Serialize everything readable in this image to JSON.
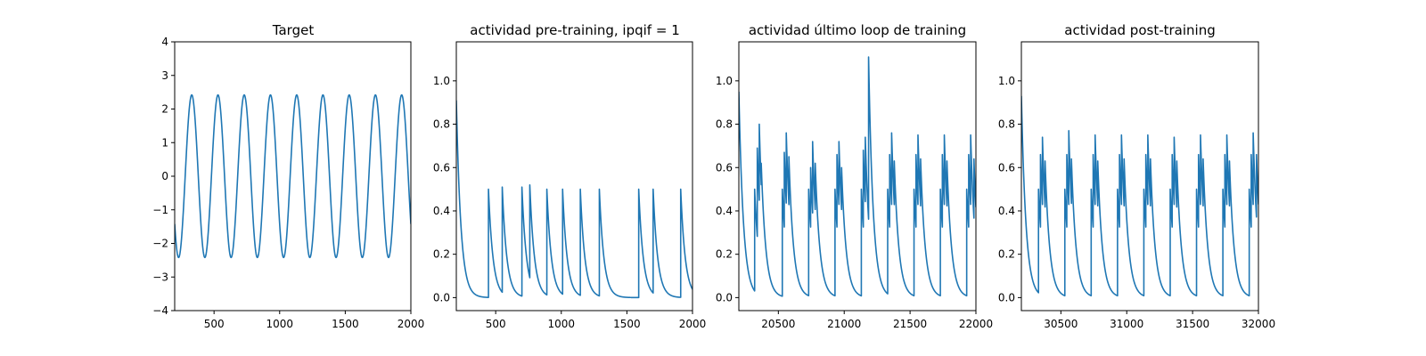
{
  "chart_data": [
    {
      "type": "line",
      "title": "Target",
      "xlim": [
        200,
        2000
      ],
      "ylim": [
        -4,
        4
      ],
      "xticks": [
        500,
        1000,
        1500,
        2000
      ],
      "yticks": [
        -4,
        -3,
        -2,
        -1,
        0,
        1,
        2,
        3,
        4
      ],
      "xtick_labels": [
        "500",
        "1000",
        "1500",
        "2000"
      ],
      "ytick_labels": [
        "−4",
        "−3",
        "−2",
        "−1",
        "0",
        "1",
        "2",
        "3",
        "4"
      ],
      "series": [
        {
          "color": "#1f77b4",
          "signal": "sine",
          "amplitude": 2.42,
          "period": 200,
          "peaks_at_x": [
            330,
            530,
            730,
            930,
            1130,
            1330,
            1530,
            1730,
            1930
          ]
        }
      ]
    },
    {
      "type": "line",
      "title": "actividad pre-training, ipqif = 1",
      "xlim": [
        200,
        2000
      ],
      "ylim": [
        -0.06,
        1.18
      ],
      "xticks": [
        500,
        1000,
        1500,
        2000
      ],
      "yticks": [
        0.0,
        0.2,
        0.4,
        0.6,
        0.8,
        1.0
      ],
      "xtick_labels": [
        "500",
        "1000",
        "1500",
        "2000"
      ],
      "ytick_labels": [
        "0.0",
        "0.2",
        "0.4",
        "0.6",
        "0.8",
        "1.0"
      ],
      "series": [
        {
          "color": "#1f77b4",
          "signal": "spikes",
          "start_value": 0.91,
          "spike_times": [
            445,
            550,
            700,
            760,
            890,
            1010,
            1145,
            1290,
            1590,
            1700,
            1910
          ],
          "spike_heights": [
            0.5,
            0.51,
            0.51,
            0.52,
            0.5,
            0.5,
            0.5,
            0.5,
            0.5,
            0.5,
            0.5
          ]
        }
      ]
    },
    {
      "type": "line",
      "title": "actividad último loop de training",
      "xlim": [
        20200,
        22000
      ],
      "ylim": [
        -0.06,
        1.18
      ],
      "xticks": [
        20500,
        21000,
        21500,
        22000
      ],
      "yticks": [
        0.0,
        0.2,
        0.4,
        0.6,
        0.8,
        1.0
      ],
      "xtick_labels": [
        "20500",
        "21000",
        "21500",
        "22000"
      ],
      "ytick_labels": [
        "0.0",
        "0.2",
        "0.4",
        "0.6",
        "0.8",
        "1.0"
      ],
      "series": [
        {
          "color": "#1f77b4",
          "signal": "spikes",
          "start_value": 0.95,
          "spike_times": [
            20320,
            20340,
            20355,
            20370,
            20530,
            20545,
            20560,
            20580,
            20730,
            20745,
            20760,
            20780,
            20930,
            20945,
            20960,
            20980,
            21130,
            21145,
            21160,
            21185,
            21330,
            21345,
            21360,
            21380,
            21530,
            21545,
            21560,
            21580,
            21730,
            21745,
            21760,
            21780,
            21930,
            21945,
            21960,
            21985
          ],
          "spike_heights": [
            0.5,
            0.69,
            0.8,
            0.62,
            0.5,
            0.67,
            0.76,
            0.65,
            0.5,
            0.6,
            0.72,
            0.62,
            0.5,
            0.66,
            0.72,
            0.6,
            0.5,
            0.68,
            0.74,
            1.11,
            0.5,
            0.66,
            0.76,
            0.63,
            0.5,
            0.66,
            0.75,
            0.64,
            0.5,
            0.66,
            0.75,
            0.63,
            0.5,
            0.66,
            0.75,
            0.64
          ]
        }
      ]
    },
    {
      "type": "line",
      "title": "actividad post-training",
      "xlim": [
        30200,
        32000
      ],
      "ylim": [
        -0.06,
        1.18
      ],
      "xticks": [
        30500,
        31000,
        31500,
        32000
      ],
      "yticks": [
        0.0,
        0.2,
        0.4,
        0.6,
        0.8,
        1.0
      ],
      "xtick_labels": [
        "30500",
        "31000",
        "31500",
        "32000"
      ],
      "ytick_labels": [
        "0.0",
        "0.2",
        "0.4",
        "0.6",
        "0.8",
        "1.0"
      ],
      "series": [
        {
          "color": "#1f77b4",
          "signal": "spikes",
          "start_value": 0.93,
          "spike_times": [
            30330,
            30345,
            30360,
            30380,
            30530,
            30545,
            30560,
            30580,
            30730,
            30745,
            30760,
            30780,
            30930,
            30945,
            30960,
            30980,
            31130,
            31145,
            31160,
            31180,
            31330,
            31345,
            31360,
            31380,
            31530,
            31545,
            31560,
            31580,
            31730,
            31745,
            31760,
            31780,
            31930,
            31945,
            31960,
            31985
          ],
          "spike_heights": [
            0.5,
            0.66,
            0.74,
            0.63,
            0.5,
            0.66,
            0.77,
            0.64,
            0.5,
            0.66,
            0.75,
            0.63,
            0.5,
            0.66,
            0.75,
            0.64,
            0.5,
            0.66,
            0.75,
            0.64,
            0.5,
            0.66,
            0.74,
            0.63,
            0.5,
            0.66,
            0.75,
            0.64,
            0.5,
            0.66,
            0.75,
            0.63,
            0.5,
            0.66,
            0.76,
            0.66
          ]
        }
      ]
    }
  ]
}
